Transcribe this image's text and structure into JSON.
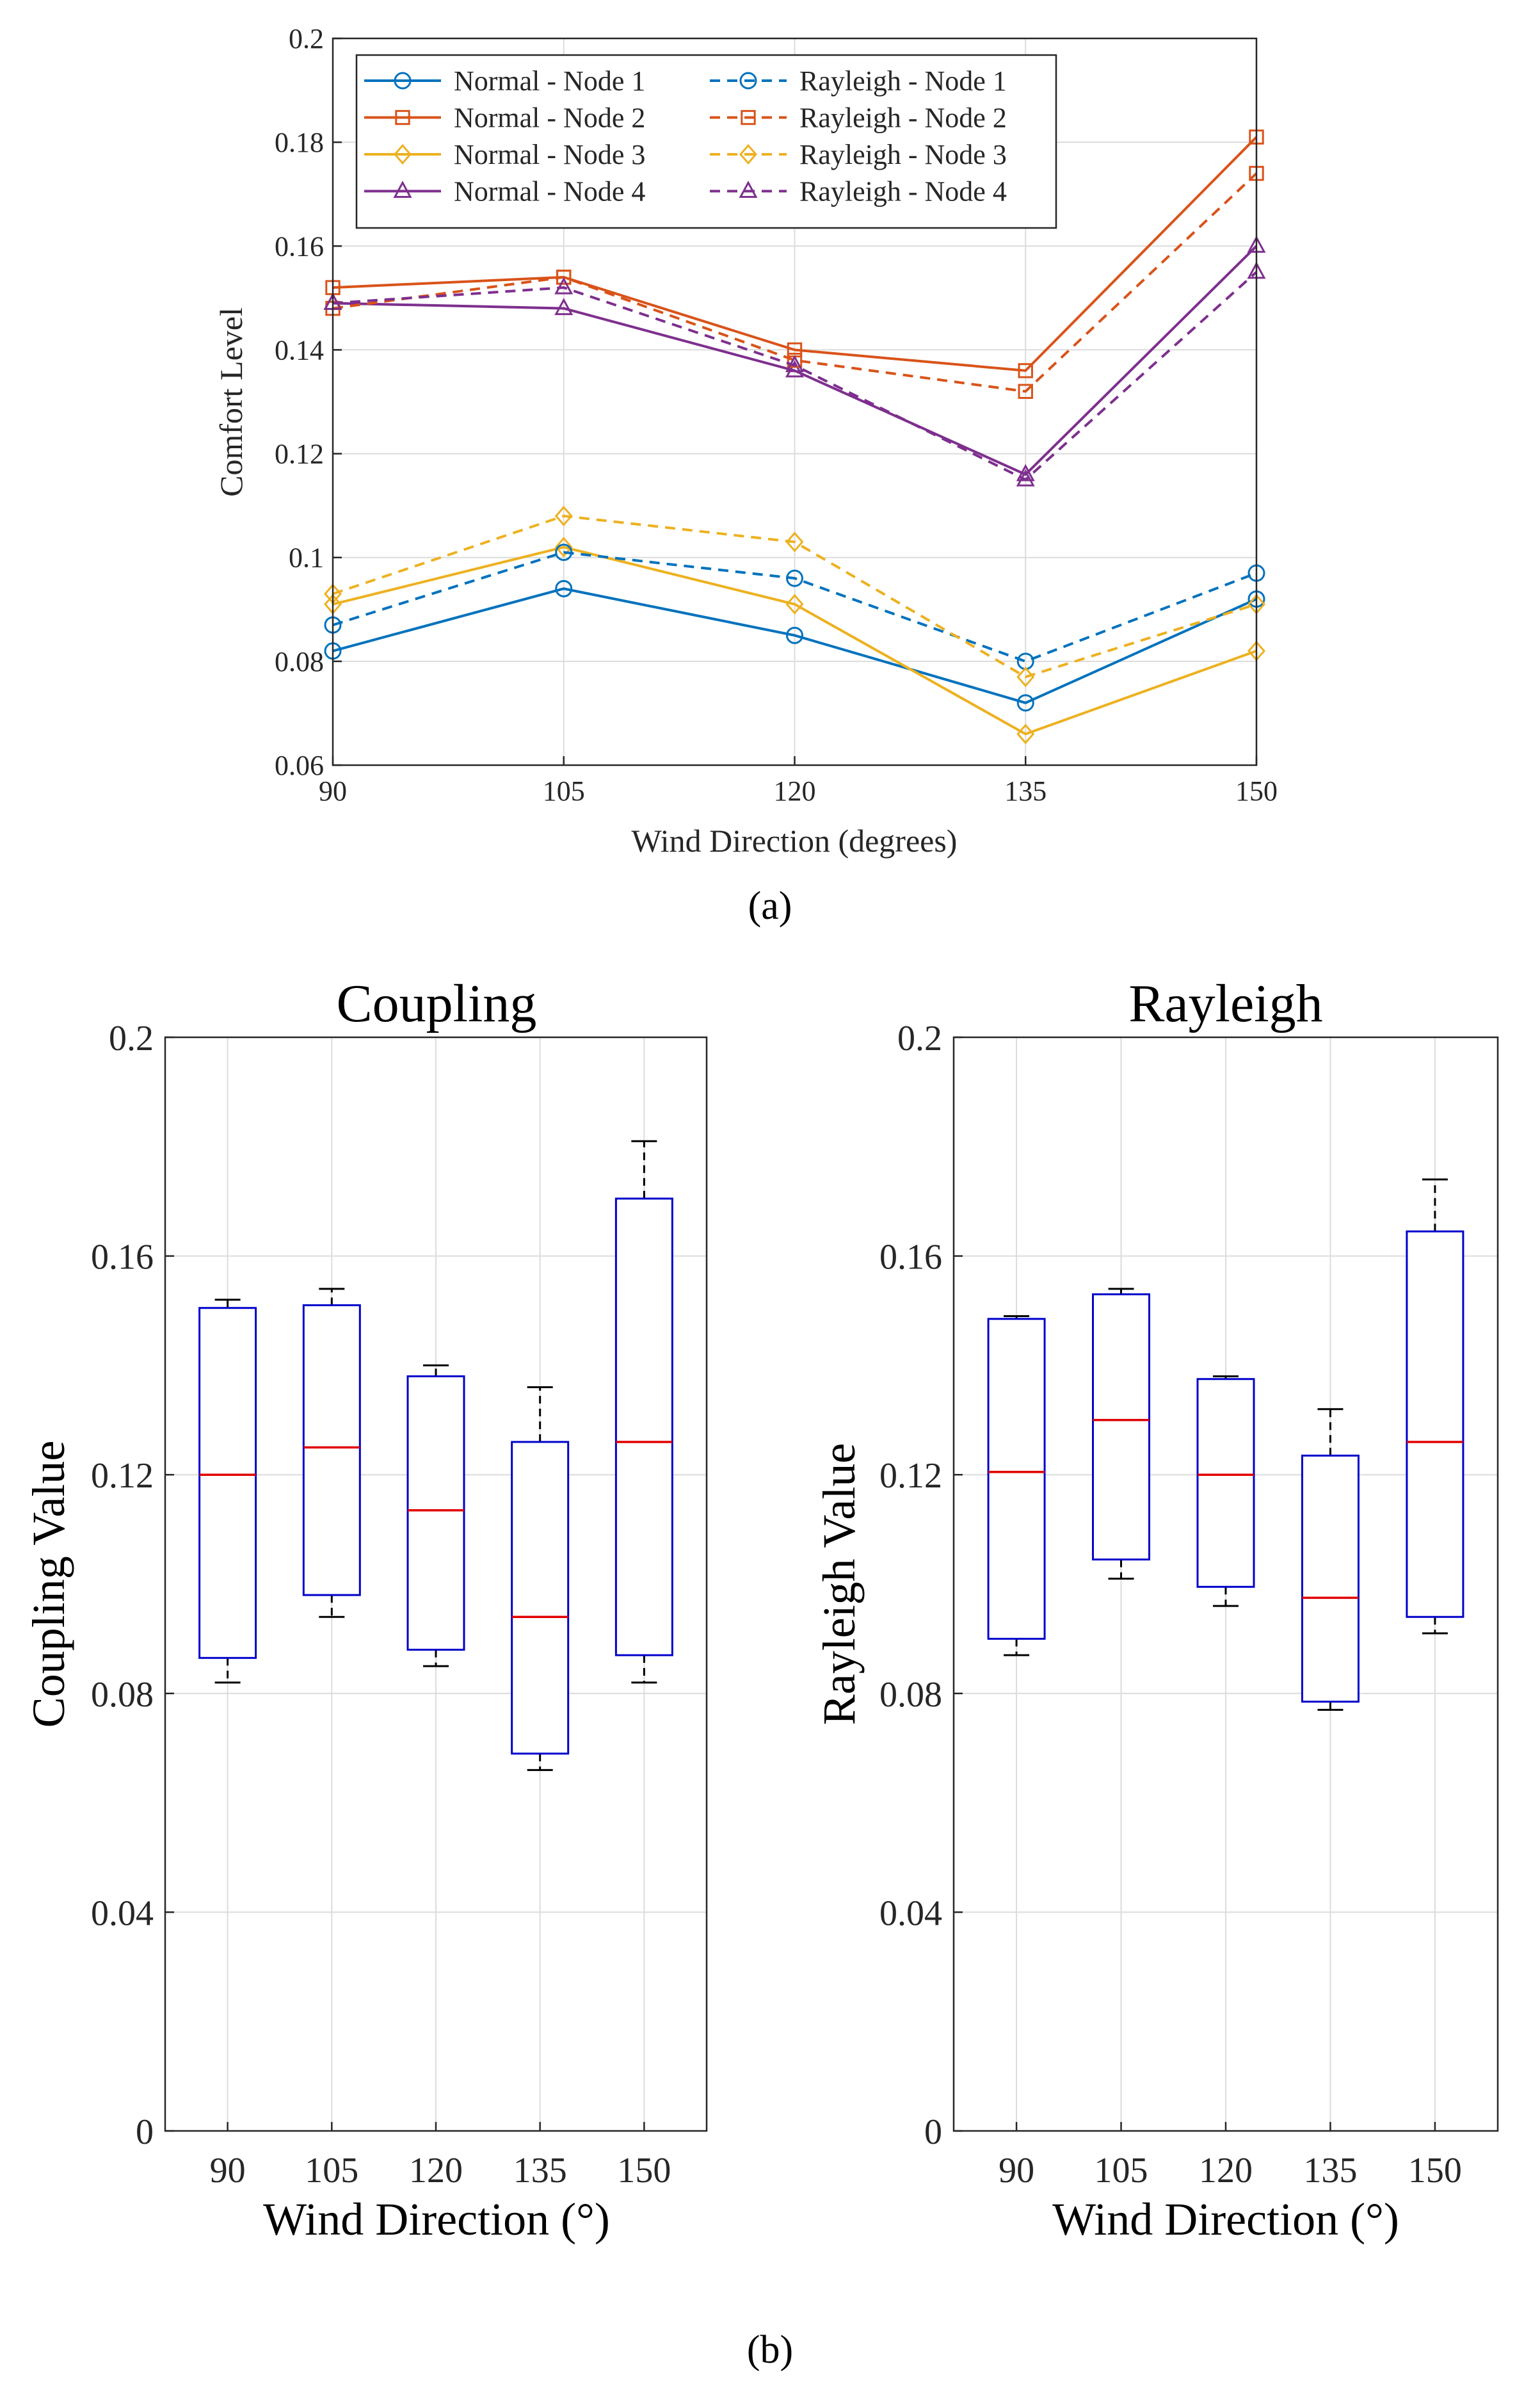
{
  "panel_a_label": "(a)",
  "panel_b_label": "(b)",
  "colors": {
    "node1": "#0072BD",
    "node2": "#D95319",
    "node3": "#EDB120",
    "node4": "#7E2F8E",
    "box_edge": "#0000CC",
    "median": "#E00000",
    "whisker": "#000000"
  },
  "chart_data": [
    {
      "type": "line",
      "title": "",
      "xlabel": "Wind Direction (degrees)",
      "ylabel": "Comfort Level",
      "x": [
        90,
        105,
        120,
        135,
        150
      ],
      "xlim": [
        90,
        150
      ],
      "ylim": [
        0.06,
        0.2
      ],
      "yticks": [
        0.06,
        0.08,
        0.1,
        0.12,
        0.14,
        0.16,
        0.18,
        0.2
      ],
      "ytick_labels": [
        "0.06",
        "0.08",
        "0.1",
        "0.12",
        "0.14",
        "0.16",
        "0.18",
        "0.2"
      ],
      "xtick_labels": [
        "90",
        "105",
        "120",
        "135",
        "150"
      ],
      "grid": true,
      "legend_position": "top-left",
      "series": [
        {
          "name": "Normal - Node 1",
          "style": "solid",
          "marker": "circle",
          "color_key": "node1",
          "values": [
            0.082,
            0.094,
            0.085,
            0.072,
            0.092
          ]
        },
        {
          "name": "Normal - Node 2",
          "style": "solid",
          "marker": "square",
          "color_key": "node2",
          "values": [
            0.152,
            0.154,
            0.14,
            0.136,
            0.181
          ]
        },
        {
          "name": "Normal - Node 3",
          "style": "solid",
          "marker": "diamond",
          "color_key": "node3",
          "values": [
            0.091,
            0.102,
            0.091,
            0.066,
            0.082
          ]
        },
        {
          "name": "Normal - Node 4",
          "style": "solid",
          "marker": "triangle",
          "color_key": "node4",
          "values": [
            0.149,
            0.148,
            0.136,
            0.116,
            0.16
          ]
        },
        {
          "name": "Rayleigh - Node 1",
          "style": "dashed",
          "marker": "circle",
          "color_key": "node1",
          "values": [
            0.087,
            0.101,
            0.096,
            0.08,
            0.097
          ]
        },
        {
          "name": "Rayleigh - Node 2",
          "style": "dashed",
          "marker": "square",
          "color_key": "node2",
          "values": [
            0.148,
            0.154,
            0.138,
            0.132,
            0.174
          ]
        },
        {
          "name": "Rayleigh - Node 3",
          "style": "dashed",
          "marker": "diamond",
          "color_key": "node3",
          "values": [
            0.093,
            0.108,
            0.103,
            0.077,
            0.091
          ]
        },
        {
          "name": "Rayleigh - Node 4",
          "style": "dashed",
          "marker": "triangle",
          "color_key": "node4",
          "values": [
            0.149,
            0.152,
            0.137,
            0.115,
            0.155
          ]
        }
      ]
    },
    {
      "type": "box",
      "title": "Coupling",
      "xlabel": "Wind Direction (°)",
      "ylabel": "Coupling Value",
      "categories": [
        "90",
        "105",
        "120",
        "135",
        "150"
      ],
      "ylim": [
        0,
        0.2
      ],
      "yticks": [
        0,
        0.04,
        0.08,
        0.12,
        0.16,
        0.2
      ],
      "ytick_labels": [
        "0",
        "0.04",
        "0.08",
        "0.12",
        "0.16",
        "0.2"
      ],
      "grid": true,
      "boxes": [
        {
          "min": 0.082,
          "q1": 0.0865,
          "median": 0.12,
          "q3": 0.1505,
          "max": 0.152
        },
        {
          "min": 0.094,
          "q1": 0.098,
          "median": 0.125,
          "q3": 0.151,
          "max": 0.154
        },
        {
          "min": 0.085,
          "q1": 0.088,
          "median": 0.1135,
          "q3": 0.138,
          "max": 0.14
        },
        {
          "min": 0.066,
          "q1": 0.069,
          "median": 0.094,
          "q3": 0.126,
          "max": 0.136
        },
        {
          "min": 0.082,
          "q1": 0.087,
          "median": 0.126,
          "q3": 0.1705,
          "max": 0.181
        }
      ]
    },
    {
      "type": "box",
      "title": "Rayleigh",
      "xlabel": "Wind Direction (°)",
      "ylabel": "Rayleigh Value",
      "categories": [
        "90",
        "105",
        "120",
        "135",
        "150"
      ],
      "ylim": [
        0,
        0.2
      ],
      "yticks": [
        0,
        0.04,
        0.08,
        0.12,
        0.16,
        0.2
      ],
      "ytick_labels": [
        "0",
        "0.04",
        "0.08",
        "0.12",
        "0.16",
        "0.2"
      ],
      "grid": true,
      "boxes": [
        {
          "min": 0.087,
          "q1": 0.09,
          "median": 0.1205,
          "q3": 0.1485,
          "max": 0.149
        },
        {
          "min": 0.101,
          "q1": 0.1045,
          "median": 0.13,
          "q3": 0.153,
          "max": 0.154
        },
        {
          "min": 0.096,
          "q1": 0.0995,
          "median": 0.12,
          "q3": 0.1375,
          "max": 0.138
        },
        {
          "min": 0.077,
          "q1": 0.0785,
          "median": 0.0975,
          "q3": 0.1235,
          "max": 0.132
        },
        {
          "min": 0.091,
          "q1": 0.094,
          "median": 0.126,
          "q3": 0.1645,
          "max": 0.174
        }
      ]
    }
  ]
}
